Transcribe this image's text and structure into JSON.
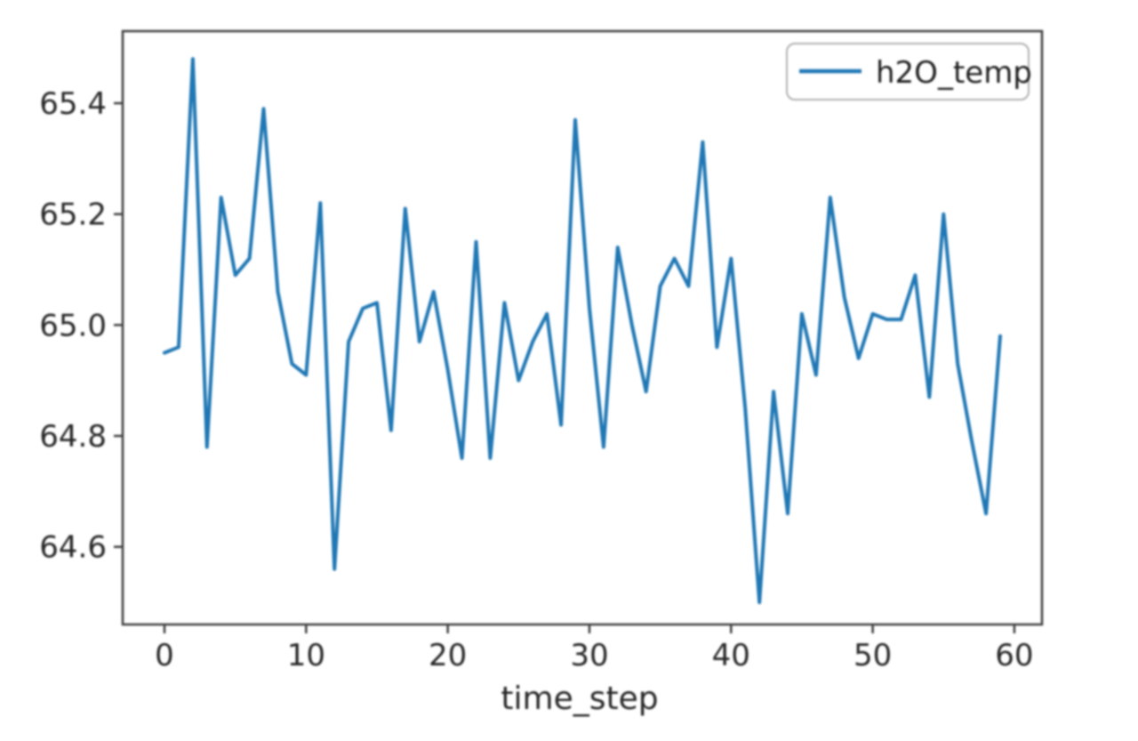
{
  "figure": {
    "background": "#ffffff",
    "spine_color": "#3d3d3d",
    "tick_color": "#3d3d3d",
    "text_color": "#262626",
    "accent_color": "#1f77b4"
  },
  "chart_data": {
    "type": "line",
    "title": "",
    "xlabel": "time_step",
    "ylabel": "",
    "grid": false,
    "legend": {
      "label": "h2O_temp",
      "position": "upper right",
      "line_color": "#1f77b4"
    },
    "xlim": [
      -2.95,
      61.95
    ],
    "ylim": [
      64.46,
      65.53
    ],
    "xticks": {
      "values": [
        0,
        10,
        20,
        30,
        40,
        50,
        60
      ],
      "labels": [
        "0",
        "10",
        "20",
        "30",
        "40",
        "50",
        "60"
      ]
    },
    "yticks": {
      "values": [
        64.6,
        64.8,
        65.0,
        65.2,
        65.4
      ],
      "labels": [
        "64.6",
        "64.8",
        "65.0",
        "65.2",
        "65.4"
      ]
    },
    "x": [
      0,
      1,
      2,
      3,
      4,
      5,
      6,
      7,
      8,
      9,
      10,
      11,
      12,
      13,
      14,
      15,
      16,
      17,
      18,
      19,
      20,
      21,
      22,
      23,
      24,
      25,
      26,
      27,
      28,
      29,
      30,
      31,
      32,
      33,
      34,
      35,
      36,
      37,
      38,
      39,
      40,
      41,
      42,
      43,
      44,
      45,
      46,
      47,
      48,
      49,
      50,
      51,
      52,
      53,
      54,
      55,
      56,
      57,
      58,
      59
    ],
    "series": [
      {
        "name": "h2O_temp",
        "color": "#1f77b4",
        "values": [
          64.95,
          64.96,
          65.48,
          64.78,
          65.23,
          65.09,
          65.12,
          65.39,
          65.06,
          64.93,
          64.91,
          65.22,
          64.56,
          64.97,
          65.03,
          65.04,
          64.81,
          65.21,
          64.97,
          65.06,
          64.92,
          64.76,
          65.15,
          64.76,
          65.04,
          64.9,
          64.97,
          65.02,
          64.82,
          65.37,
          65.03,
          64.78,
          65.14,
          65.0,
          64.88,
          65.07,
          65.12,
          65.07,
          65.33,
          64.96,
          65.12,
          64.85,
          64.5,
          64.88,
          64.66,
          65.02,
          64.91,
          65.23,
          65.05,
          64.94,
          65.02,
          65.01,
          65.01,
          65.09,
          64.87,
          65.2,
          64.93,
          64.79,
          64.66,
          64.98
        ]
      }
    ]
  }
}
